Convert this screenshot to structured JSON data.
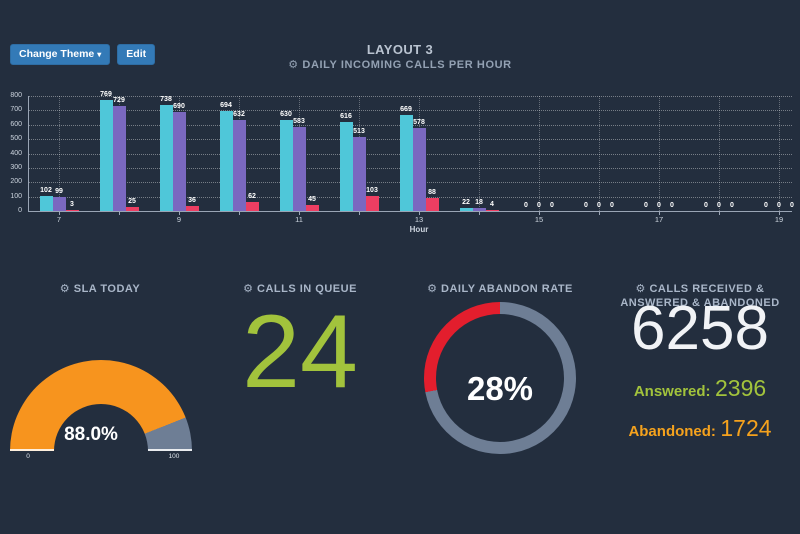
{
  "toolbar": {
    "change_theme_label": "Change Theme",
    "edit_label": "Edit"
  },
  "header": {
    "title": "LAYOUT 3",
    "subtitle": "DAILY INCOMING CALLS PER HOUR"
  },
  "icons": {
    "gear": "⚙",
    "caret": "▾"
  },
  "chart_data": {
    "type": "bar",
    "title": "DAILY INCOMING CALLS PER HOUR",
    "xlabel": "Hour",
    "ylabel": "",
    "ylim": [
      0,
      800
    ],
    "yticks": [
      0,
      100,
      200,
      300,
      400,
      500,
      600,
      700,
      800
    ],
    "x": [
      7,
      8,
      9,
      10,
      11,
      12,
      13,
      14,
      15,
      16,
      17,
      18,
      19
    ],
    "xtick_labels_shown": [
      7,
      9,
      11,
      13,
      15,
      17,
      19
    ],
    "grid": true,
    "legend": false,
    "value_labels": true,
    "series": [
      {
        "name": "cyan",
        "color": "#4fc7d9",
        "values": [
          102,
          769,
          738,
          694,
          630,
          616,
          669,
          22,
          0,
          0,
          0,
          0,
          0
        ]
      },
      {
        "name": "purple",
        "color": "#7a68c0",
        "values": [
          99,
          729,
          690,
          632,
          583,
          513,
          578,
          18,
          0,
          0,
          0,
          0,
          0
        ]
      },
      {
        "name": "red",
        "color": "#ed3e62",
        "values": [
          3,
          25,
          36,
          62,
          45,
          103,
          88,
          4,
          0,
          0,
          0,
          0,
          0
        ]
      }
    ]
  },
  "widgets": {
    "sla": {
      "title": "SLA TODAY",
      "value": 88.0,
      "value_label": "88.0%",
      "min_label": "0",
      "max_label": "100",
      "fill_color": "#f7941e",
      "track_color": "#6e7e95"
    },
    "queue": {
      "title": "CALLS IN QUEUE",
      "value": "24",
      "color": "#a2c33c"
    },
    "abandon": {
      "title": "DAILY ABANDON RATE",
      "value": 28,
      "value_label": "28%",
      "fill_color": "#e31e2d",
      "track_color": "#6e7e95"
    },
    "totals": {
      "title": "CALLS RECEIVED & ANSWERED & ABANDONED",
      "total": "6258",
      "answered_label": "Answered:",
      "answered_value": "2396",
      "answered_color": "#a2c33c",
      "abandoned_label": "Abandoned:",
      "abandoned_value": "1724",
      "abandoned_color": "#f5a21d"
    }
  }
}
